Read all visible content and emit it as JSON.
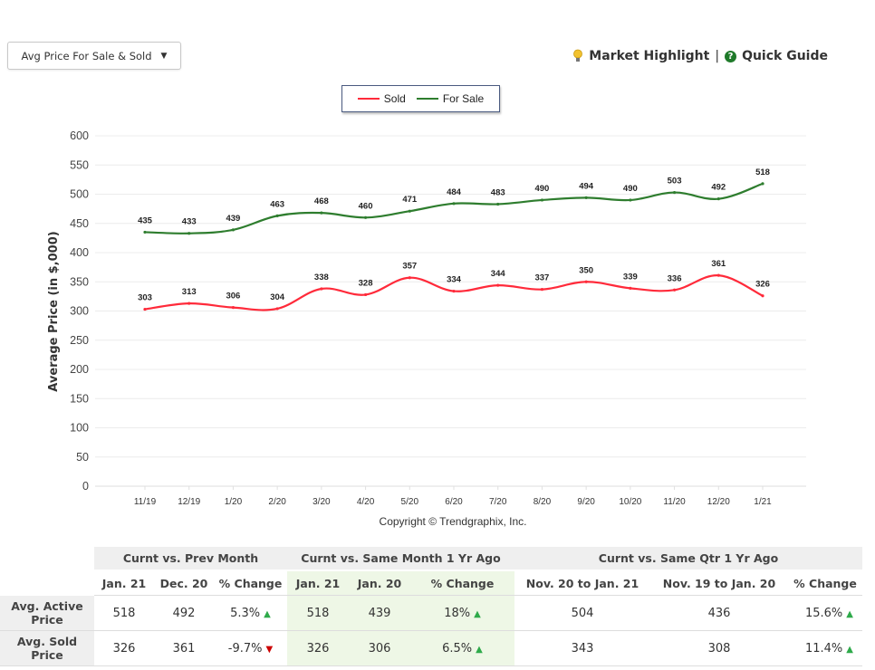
{
  "toolbar": {
    "dropdown_label": "Avg Price For Sale & Sold",
    "market_highlight": "Market Highlight",
    "separator": "|",
    "quick_guide": "Quick Guide"
  },
  "chart_data": {
    "type": "line",
    "title": "",
    "xlabel": "",
    "ylabel": "Average Price (in $,000)",
    "ylim": [
      0,
      600
    ],
    "yticks": [
      0,
      50,
      100,
      150,
      200,
      250,
      300,
      350,
      400,
      450,
      500,
      550,
      600
    ],
    "grid": true,
    "legend_position": "top-center",
    "categories": [
      "11/19",
      "12/19",
      "1/20",
      "2/20",
      "3/20",
      "4/20",
      "5/20",
      "6/20",
      "7/20",
      "8/20",
      "9/20",
      "10/20",
      "11/20",
      "12/20",
      "1/21"
    ],
    "series": [
      {
        "name": "Sold",
        "color": "#ff2a3a",
        "values": [
          303,
          313,
          306,
          304,
          338,
          328,
          357,
          334,
          344,
          337,
          350,
          339,
          336,
          361,
          326
        ]
      },
      {
        "name": "For Sale",
        "color": "#2e7d2e",
        "values": [
          435,
          433,
          439,
          463,
          468,
          460,
          471,
          484,
          483,
          490,
          494,
          490,
          503,
          492,
          518
        ]
      }
    ],
    "footnote": "Copyright © Trendgraphix, Inc."
  },
  "table": {
    "groups": [
      "Curnt vs. Prev Month",
      "Curnt vs. Same Month 1 Yr Ago",
      "Curnt vs. Same Qtr 1 Yr Ago"
    ],
    "columns": [
      "Jan. 21",
      "Dec. 20",
      "% Change",
      "Jan. 21",
      "Jan. 20",
      "% Change",
      "Nov. 20 to Jan. 21",
      "Nov. 19 to Jan. 20",
      "% Change"
    ],
    "rows": [
      {
        "label_line1": "Avg. Active",
        "label_line2": "Price",
        "cells": [
          "518",
          "492",
          "5.3%",
          "518",
          "439",
          "18%",
          "504",
          "436",
          "15.6%"
        ],
        "trends": [
          "",
          "",
          "up",
          "",
          "",
          "up",
          "",
          "",
          "up"
        ]
      },
      {
        "label_line1": "Avg. Sold",
        "label_line2": "Price",
        "cells": [
          "326",
          "361",
          "-9.7%",
          "326",
          "306",
          "6.5%",
          "343",
          "308",
          "11.4%"
        ],
        "trends": [
          "",
          "",
          "down",
          "",
          "",
          "up",
          "",
          "",
          "up"
        ]
      }
    ],
    "arrow_up": "▲",
    "arrow_down": "▼"
  }
}
